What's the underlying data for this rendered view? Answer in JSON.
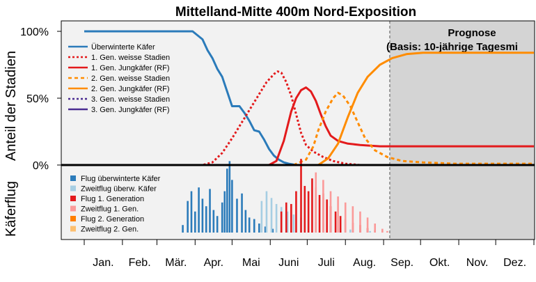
{
  "chart_data": {
    "type": "line",
    "title": "Mittelland-Mitte 400m Nord-Exposition",
    "ylabel_top": "Anteil der Stadien",
    "ylabel_bottom": "Käferflug",
    "y_ticks": [
      "0%",
      "50%",
      "100%"
    ],
    "ylim": [
      0,
      100
    ],
    "months": [
      "Jan.",
      "Feb.",
      "Mär.",
      "Apr.",
      "Mai",
      "Juni",
      "Juli",
      "Aug.",
      "Sep.",
      "Okt.",
      "Nov.",
      "Dez."
    ],
    "forecast_start_day": 248,
    "forecast_title": "Prognose",
    "forecast_subtitle": "(Basis: 10-jährige Tagesmi",
    "legend_top_position": "top-left",
    "series": [
      {
        "name": "Überwinterte Käfer",
        "color": "#2b7bba",
        "dash": "solid",
        "points": [
          [
            0,
            100
          ],
          [
            88,
            100
          ],
          [
            96,
            94
          ],
          [
            100,
            86
          ],
          [
            104,
            80
          ],
          [
            108,
            72
          ],
          [
            112,
            66
          ],
          [
            116,
            55
          ],
          [
            120,
            44
          ],
          [
            126,
            44
          ],
          [
            130,
            39
          ],
          [
            134,
            33
          ],
          [
            138,
            26
          ],
          [
            142,
            25
          ],
          [
            146,
            19
          ],
          [
            150,
            12
          ],
          [
            154,
            7
          ],
          [
            158,
            4
          ],
          [
            162,
            2
          ],
          [
            166,
            1
          ],
          [
            172,
            0
          ],
          [
            365,
            0
          ]
        ]
      },
      {
        "name": "1. Gen. weisse Stadien",
        "color": "#e31a1c",
        "dash": "dotted",
        "points": [
          [
            80,
            0
          ],
          [
            96,
            0
          ],
          [
            104,
            2
          ],
          [
            112,
            9
          ],
          [
            120,
            20
          ],
          [
            128,
            32
          ],
          [
            136,
            44
          ],
          [
            142,
            53
          ],
          [
            148,
            62
          ],
          [
            154,
            68
          ],
          [
            157,
            70
          ],
          [
            160,
            69
          ],
          [
            164,
            62
          ],
          [
            168,
            52
          ],
          [
            172,
            38
          ],
          [
            176,
            24
          ],
          [
            180,
            15
          ],
          [
            186,
            10
          ],
          [
            194,
            6
          ],
          [
            202,
            3
          ],
          [
            212,
            1
          ],
          [
            224,
            0
          ],
          [
            365,
            0
          ]
        ]
      },
      {
        "name": "1. Gen. Jungkäfer (RF)",
        "color": "#e31a1c",
        "dash": "solid",
        "points": [
          [
            0,
            0
          ],
          [
            150,
            0
          ],
          [
            156,
            3
          ],
          [
            162,
            18
          ],
          [
            168,
            40
          ],
          [
            172,
            50
          ],
          [
            176,
            56
          ],
          [
            180,
            58
          ],
          [
            184,
            55
          ],
          [
            188,
            48
          ],
          [
            192,
            38
          ],
          [
            196,
            29
          ],
          [
            200,
            22
          ],
          [
            206,
            18
          ],
          [
            214,
            16
          ],
          [
            224,
            15
          ],
          [
            240,
            14
          ],
          [
            365,
            14
          ]
        ]
      },
      {
        "name": "2. Gen. weisse Stadien",
        "color": "#ff8c00",
        "dash": "dashed",
        "points": [
          [
            170,
            0
          ],
          [
            180,
            4
          ],
          [
            186,
            14
          ],
          [
            190,
            26
          ],
          [
            196,
            40
          ],
          [
            202,
            50
          ],
          [
            206,
            54
          ],
          [
            210,
            52
          ],
          [
            216,
            44
          ],
          [
            222,
            32
          ],
          [
            228,
            20
          ],
          [
            236,
            11
          ],
          [
            246,
            6
          ],
          [
            258,
            3
          ],
          [
            275,
            2
          ],
          [
            300,
            1
          ],
          [
            365,
            1
          ]
        ]
      },
      {
        "name": "2. Gen. Jungkäfer (RF)",
        "color": "#ff8c00",
        "dash": "solid",
        "points": [
          [
            0,
            0
          ],
          [
            190,
            0
          ],
          [
            198,
            5
          ],
          [
            206,
            16
          ],
          [
            214,
            36
          ],
          [
            222,
            54
          ],
          [
            230,
            66
          ],
          [
            240,
            75
          ],
          [
            250,
            80
          ],
          [
            262,
            83
          ],
          [
            275,
            84
          ],
          [
            365,
            84
          ]
        ]
      },
      {
        "name": "3. Gen. weisse Stadien",
        "color": "#4a2c91",
        "dash": "dotted",
        "points": [
          [
            0,
            0
          ],
          [
            365,
            0
          ]
        ]
      },
      {
        "name": "3. Gen. Jungkäfer (RF)",
        "color": "#4a2c91",
        "dash": "solid",
        "points": [
          [
            0,
            0
          ],
          [
            365,
            0
          ]
        ]
      }
    ],
    "flight_legend": [
      {
        "name": "Flug überwinterte Käfer",
        "color": "#2b7bba"
      },
      {
        "name": "Zweitflug überw. Käfer",
        "color": "#a6cee3"
      },
      {
        "name": "Flug 1. Generation",
        "color": "#e31a1c"
      },
      {
        "name": "Zweitflug 1. Gen.",
        "color": "#fb9a99"
      },
      {
        "name": "Flug 2. Generation",
        "color": "#ff7f00"
      },
      {
        "name": "Zweitflug 2. Gen.",
        "color": "#fdbf6f"
      }
    ],
    "flight_bars": [
      {
        "series": 0,
        "day": 80,
        "value": 0.1
      },
      {
        "series": 0,
        "day": 84,
        "value": 0.42
      },
      {
        "series": 0,
        "day": 87,
        "value": 0.55
      },
      {
        "series": 0,
        "day": 90,
        "value": 0.28
      },
      {
        "series": 0,
        "day": 93,
        "value": 0.6
      },
      {
        "series": 0,
        "day": 96,
        "value": 0.45
      },
      {
        "series": 0,
        "day": 99,
        "value": 0.35
      },
      {
        "series": 0,
        "day": 102,
        "value": 0.58
      },
      {
        "series": 0,
        "day": 105,
        "value": 0.3
      },
      {
        "series": 0,
        "day": 108,
        "value": 0.22
      },
      {
        "series": 0,
        "day": 112,
        "value": 0.4
      },
      {
        "series": 0,
        "day": 114,
        "value": 0.55
      },
      {
        "series": 0,
        "day": 116,
        "value": 0.85
      },
      {
        "series": 0,
        "day": 118,
        "value": 0.95
      },
      {
        "series": 0,
        "day": 120,
        "value": 0.7
      },
      {
        "series": 0,
        "day": 124,
        "value": 0.45
      },
      {
        "series": 0,
        "day": 128,
        "value": 0.52
      },
      {
        "series": 0,
        "day": 131,
        "value": 0.3
      },
      {
        "series": 0,
        "day": 134,
        "value": 0.2
      },
      {
        "series": 0,
        "day": 138,
        "value": 0.18
      },
      {
        "series": 0,
        "day": 142,
        "value": 0.12
      },
      {
        "series": 0,
        "day": 147,
        "value": 0.08
      },
      {
        "series": 0,
        "day": 153,
        "value": 0.05
      },
      {
        "series": 0,
        "day": 160,
        "value": 0.03
      },
      {
        "series": 1,
        "day": 144,
        "value": 0.42
      },
      {
        "series": 1,
        "day": 148,
        "value": 0.55
      },
      {
        "series": 1,
        "day": 152,
        "value": 0.46
      },
      {
        "series": 1,
        "day": 156,
        "value": 0.38
      },
      {
        "series": 1,
        "day": 160,
        "value": 0.34
      },
      {
        "series": 1,
        "day": 165,
        "value": 0.28
      },
      {
        "series": 1,
        "day": 170,
        "value": 0.24
      },
      {
        "series": 1,
        "day": 176,
        "value": 0.2
      },
      {
        "series": 1,
        "day": 182,
        "value": 0.17
      },
      {
        "series": 1,
        "day": 188,
        "value": 0.14
      },
      {
        "series": 1,
        "day": 194,
        "value": 0.12
      },
      {
        "series": 1,
        "day": 200,
        "value": 0.09
      },
      {
        "series": 1,
        "day": 208,
        "value": 0.06
      },
      {
        "series": 1,
        "day": 216,
        "value": 0.04
      },
      {
        "series": 1,
        "day": 224,
        "value": 0.03
      },
      {
        "series": 1,
        "day": 232,
        "value": 0.02
      },
      {
        "series": 2,
        "day": 160,
        "value": 0.28
      },
      {
        "series": 2,
        "day": 164,
        "value": 0.4
      },
      {
        "series": 2,
        "day": 168,
        "value": 0.38
      },
      {
        "series": 2,
        "day": 172,
        "value": 0.55
      },
      {
        "series": 2,
        "day": 176,
        "value": 0.98
      },
      {
        "series": 2,
        "day": 179,
        "value": 0.62
      },
      {
        "series": 2,
        "day": 182,
        "value": 0.55
      },
      {
        "series": 2,
        "day": 185,
        "value": 0.72
      },
      {
        "series": 2,
        "day": 188,
        "value": 0.6
      },
      {
        "series": 2,
        "day": 191,
        "value": 0.5
      },
      {
        "series": 2,
        "day": 194,
        "value": 0.52
      },
      {
        "series": 2,
        "day": 197,
        "value": 0.44
      },
      {
        "series": 2,
        "day": 200,
        "value": 0.35
      },
      {
        "series": 2,
        "day": 204,
        "value": 0.28
      },
      {
        "series": 2,
        "day": 208,
        "value": 0.22
      },
      {
        "series": 2,
        "day": 212,
        "value": 0.18
      },
      {
        "series": 2,
        "day": 218,
        "value": 0.13
      },
      {
        "series": 2,
        "day": 224,
        "value": 0.1
      },
      {
        "series": 2,
        "day": 230,
        "value": 0.06
      },
      {
        "series": 2,
        "day": 236,
        "value": 0.03
      },
      {
        "series": 3,
        "day": 188,
        "value": 0.8
      },
      {
        "series": 3,
        "day": 194,
        "value": 0.7
      },
      {
        "series": 3,
        "day": 200,
        "value": 0.55
      },
      {
        "series": 3,
        "day": 206,
        "value": 0.48
      },
      {
        "series": 3,
        "day": 212,
        "value": 0.4
      },
      {
        "series": 3,
        "day": 218,
        "value": 0.35
      },
      {
        "series": 3,
        "day": 224,
        "value": 0.28
      },
      {
        "series": 3,
        "day": 230,
        "value": 0.2
      },
      {
        "series": 3,
        "day": 236,
        "value": 0.12
      },
      {
        "series": 3,
        "day": 242,
        "value": 0.05
      },
      {
        "series": 3,
        "day": 246,
        "value": 0.02
      }
    ]
  }
}
